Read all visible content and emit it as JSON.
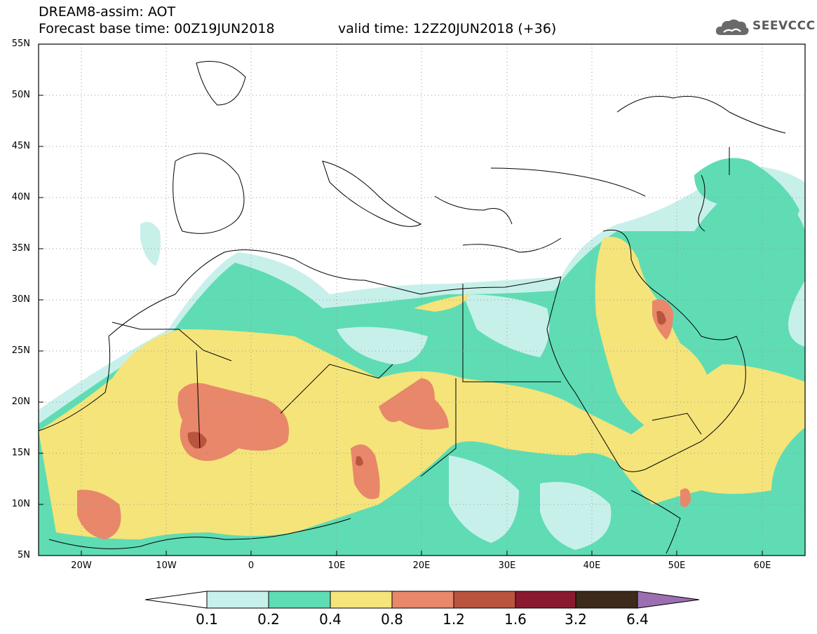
{
  "header": {
    "title_line1": "DREAM8-assim: AOT",
    "title_line2": "Forecast base time: 00Z19JUN2018",
    "valid_time": "valid time: 12Z20JUN2018 (+36)"
  },
  "logo": {
    "text": "SEEVCCC",
    "icon": "cloud-icon"
  },
  "map": {
    "lon_range": [
      -25,
      65
    ],
    "lat_range": [
      5,
      55
    ],
    "lat_ticks": [
      "55N",
      "50N",
      "45N",
      "40N",
      "35N",
      "30N",
      "25N",
      "20N",
      "15N",
      "10N",
      "5N"
    ],
    "lon_ticks": [
      "20W",
      "10W",
      "0",
      "10E",
      "20E",
      "30E",
      "40E",
      "50E",
      "60E"
    ]
  },
  "colorbar": {
    "labels": [
      "0.1",
      "0.2",
      "0.4",
      "0.8",
      "1.2",
      "1.6",
      "3.2",
      "6.4"
    ],
    "colors": [
      "#ffffff",
      "#c8f0ea",
      "#5fdcb4",
      "#f5e47a",
      "#e8876a",
      "#b9543e",
      "#8a1a30",
      "#3d2a1a",
      "#9b6fb0"
    ]
  }
}
